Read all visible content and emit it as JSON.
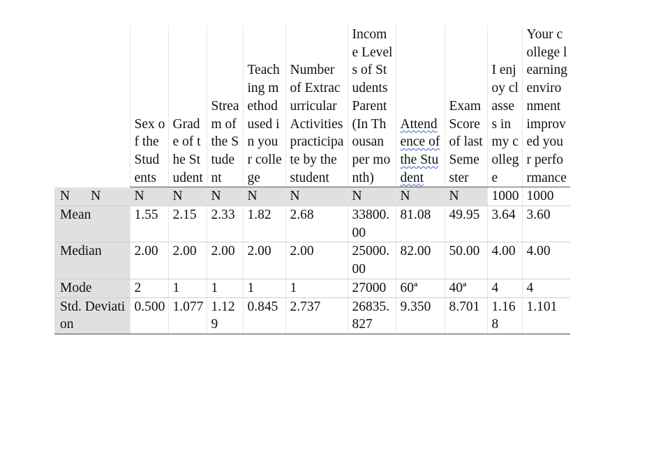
{
  "columns": [
    "Sex of the Students",
    "Grade of the Student",
    "Stream of the Student",
    "Teaching method used in your college",
    "Number of Extracurricular Activities practicipate by the student",
    "Income Levels of Students Parent (In Thousan per month)",
    "Attendence of the Student",
    "Exam Score of last Semester",
    "I enjoy classes in my college",
    "Your college learning environment improved your performance"
  ],
  "rows": {
    "n": {
      "label_1": "N",
      "label_2": "N",
      "values": [
        "N",
        "N",
        "N",
        "N",
        "N",
        "N",
        "N",
        "N",
        "1000",
        "1000"
      ]
    },
    "mean": {
      "label": "Mean",
      "values": [
        "1.55",
        "2.15",
        "2.33",
        "1.82",
        "2.68",
        "33800.00",
        "81.08",
        "49.95",
        "3.64",
        "3.60"
      ]
    },
    "median": {
      "label": "Median",
      "values": [
        "2.00",
        "2.00",
        "2.00",
        "2.00",
        "2.00",
        "25000.00",
        "82.00",
        "50.00",
        "4.00",
        "4.00"
      ]
    },
    "mode": {
      "label": "Mode",
      "values": [
        "2",
        "1",
        "1",
        "1",
        "1",
        "27000",
        "60ª",
        "40ª",
        "4",
        "4"
      ]
    },
    "sd": {
      "label": "Std. Deviation",
      "values": [
        "0.500",
        "1.077",
        "1.129",
        "0.845",
        "2.737",
        "26835.827",
        "9.350",
        "8.701",
        "1.168",
        "1.101"
      ]
    }
  }
}
